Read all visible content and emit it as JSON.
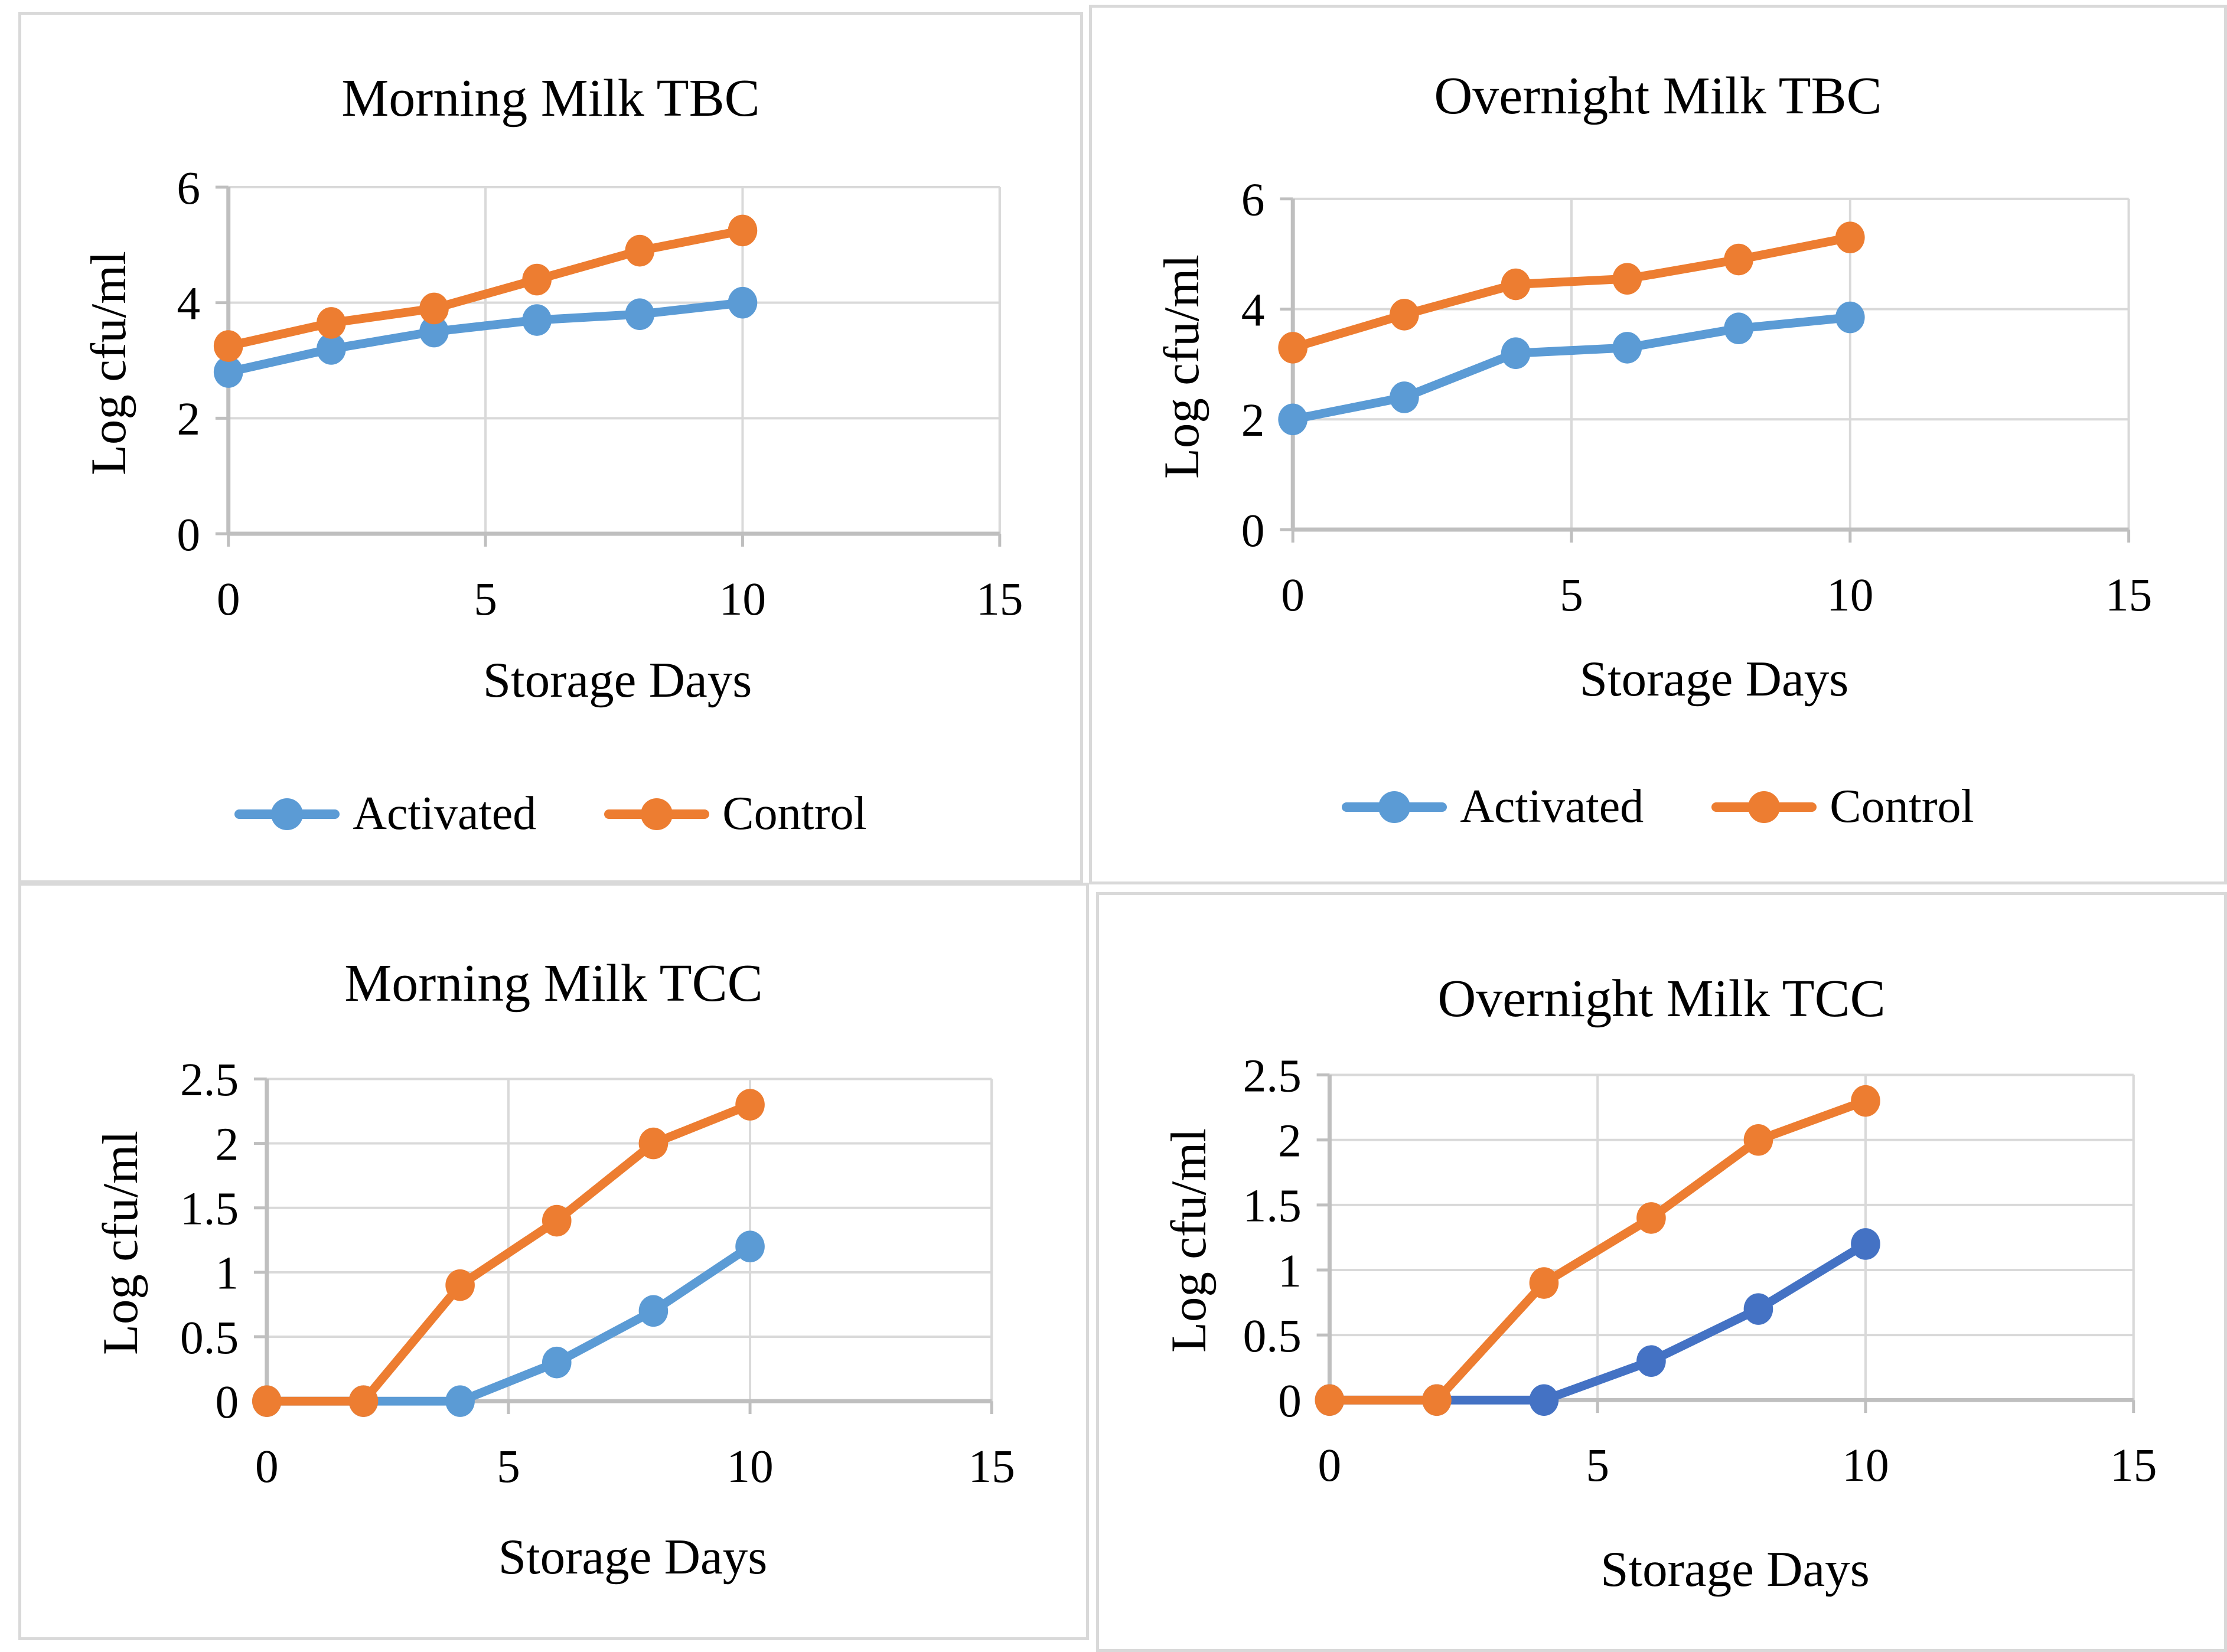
{
  "colors": {
    "series_activated_light": "#5B9BD5",
    "series_activated_dark": "#4472C4",
    "series_control": "#ED7D31",
    "gridline": "#D9D9D9",
    "axis_line": "#BFBFBF",
    "panel_border": "#D9D9D9",
    "text": "#000000",
    "background": "#FFFFFF"
  },
  "chart_data": [
    {
      "type": "line",
      "title": "Morning Milk TBC",
      "xlabel": "Storage Days",
      "ylabel": "Log cfu/ml",
      "x": [
        0,
        2,
        4,
        6,
        8,
        10
      ],
      "series": [
        {
          "name": "Activated",
          "color": "#5B9BD5",
          "values": [
            2.8,
            3.2,
            3.5,
            3.7,
            3.8,
            4.0
          ]
        },
        {
          "name": "Control",
          "color": "#ED7D31",
          "values": [
            3.25,
            3.65,
            3.9,
            4.4,
            4.9,
            5.25
          ]
        }
      ],
      "xlim": [
        0,
        15
      ],
      "ylim": [
        0,
        6
      ],
      "xticks": [
        0,
        5,
        10,
        15
      ],
      "yticks": [
        0,
        2,
        4,
        6
      ],
      "grid": true,
      "legend": true,
      "legend_position": "bottom"
    },
    {
      "type": "line",
      "title": "Overnight Milk TBC",
      "xlabel": "Storage Days",
      "ylabel": "Log cfu/ml",
      "x": [
        0,
        2,
        4,
        6,
        8,
        10
      ],
      "series": [
        {
          "name": "Activated",
          "color": "#5B9BD5",
          "values": [
            2.0,
            2.4,
            3.2,
            3.3,
            3.65,
            3.85
          ]
        },
        {
          "name": "Control",
          "color": "#ED7D31",
          "values": [
            3.3,
            3.9,
            4.45,
            4.55,
            4.9,
            5.3
          ]
        }
      ],
      "xlim": [
        0,
        15
      ],
      "ylim": [
        0,
        6
      ],
      "xticks": [
        0,
        5,
        10,
        15
      ],
      "yticks": [
        0,
        2,
        4,
        6
      ],
      "grid": true,
      "legend": true,
      "legend_position": "bottom"
    },
    {
      "type": "line",
      "title": "Morning Milk TCC",
      "xlabel": "Storage Days",
      "ylabel": "Log cfu/ml",
      "x": [
        0,
        2,
        4,
        6,
        8,
        10
      ],
      "series": [
        {
          "name": "Activated",
          "color": "#5B9BD5",
          "values": [
            0,
            0,
            0,
            0.3,
            0.7,
            1.2
          ]
        },
        {
          "name": "Control",
          "color": "#ED7D31",
          "values": [
            0,
            0,
            0.9,
            1.4,
            2.0,
            2.3
          ]
        }
      ],
      "xlim": [
        0,
        15
      ],
      "ylim": [
        0,
        2.5
      ],
      "xticks": [
        0,
        5,
        10,
        15
      ],
      "yticks": [
        0,
        0.5,
        1,
        1.5,
        2,
        2.5
      ],
      "grid": true,
      "legend": false,
      "legend_position": "none"
    },
    {
      "type": "line",
      "title": "Overnight Milk TCC",
      "xlabel": "Storage Days",
      "ylabel": "Log cfu/ml",
      "x": [
        0,
        2,
        4,
        6,
        8,
        10
      ],
      "series": [
        {
          "name": "Activated",
          "color": "#4472C4",
          "values": [
            0,
            0,
            0,
            0.3,
            0.7,
            1.2
          ]
        },
        {
          "name": "Control",
          "color": "#ED7D31",
          "values": [
            0,
            0,
            0.9,
            1.4,
            2.0,
            2.3
          ]
        }
      ],
      "xlim": [
        0,
        15
      ],
      "ylim": [
        0,
        2.5
      ],
      "xticks": [
        0,
        5,
        10,
        15
      ],
      "yticks": [
        0,
        0.5,
        1,
        1.5,
        2,
        2.5
      ],
      "grid": true,
      "legend": false,
      "legend_position": "none"
    }
  ]
}
